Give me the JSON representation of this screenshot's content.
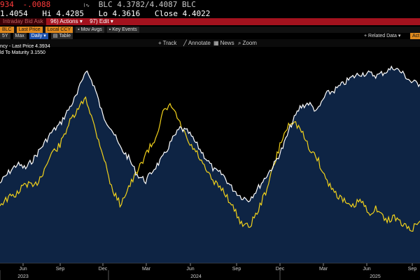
{
  "header": {
    "last_fragment": "934",
    "change": "-.0088",
    "bid_ask": "BLC 4.3782/4.4087 BLC",
    "open_fragment": "1.4054",
    "hi_label": "Hi",
    "hi": "4.4285",
    "lo_label": "Lo",
    "lo": "4.3616",
    "close_label": "Close",
    "close": "4.4022"
  },
  "menubar": {
    "left_fragment": "Intraday Bid Ask",
    "actions": "96) Actions ▾",
    "edit": "97) Edit ▾"
  },
  "options_row": {
    "source": "BLC",
    "field": "Last Price",
    "currency": "Local CCY",
    "mov_avgs": "Mov Avgs",
    "key_events": "Key Events"
  },
  "period_row": {
    "p5y": "5Y",
    "max": "Max",
    "freq": "Daily ▾",
    "table": "Table",
    "related": "+ Related Data ▾",
    "edit_btn": "Act Da"
  },
  "toolbar": {
    "track": "Track",
    "annotate": "Annotate",
    "news": "News",
    "zoom": "Zoom"
  },
  "legend": {
    "line1": "ncy - Last Price 4.3934",
    "line2": "ld To Maturity  3.1550"
  },
  "colors": {
    "background": "#000000",
    "area_fill": "#0e2444",
    "price_line": "#ffffff",
    "ytm_line": "#f2d21b",
    "header_red": "#a3121e",
    "negative": "#ff3b3b",
    "orange_pill": "#e08a1e"
  },
  "chart_data": {
    "type": "line",
    "x_month_ticks": [
      "Jun",
      "Sep",
      "Dec",
      "Mar",
      "Jun",
      "Sep",
      "Dec",
      "Mar",
      "Jun",
      "Sep"
    ],
    "x_year_ticks": [
      "2023",
      "2024",
      "2025"
    ],
    "series": [
      {
        "name": "Last Price",
        "values": [
          0.38,
          0.43,
          0.47,
          0.45,
          0.5,
          0.56,
          0.62,
          0.66,
          0.73,
          0.8,
          0.92,
          0.84,
          0.7,
          0.64,
          0.55,
          0.5,
          0.42,
          0.39,
          0.45,
          0.5,
          0.58,
          0.64,
          0.62,
          0.56,
          0.5,
          0.44,
          0.42,
          0.36,
          0.32,
          0.3,
          0.35,
          0.41,
          0.47,
          0.55,
          0.66,
          0.74,
          0.76,
          0.72,
          0.8,
          0.82,
          0.85,
          0.88,
          0.9,
          0.9,
          0.89,
          0.91,
          0.93,
          0.9,
          0.86,
          0.85
        ]
      },
      {
        "name": "Yield To Maturity",
        "values": [
          0.28,
          0.31,
          0.33,
          0.38,
          0.36,
          0.43,
          0.52,
          0.56,
          0.66,
          0.72,
          0.79,
          0.65,
          0.52,
          0.36,
          0.28,
          0.36,
          0.43,
          0.52,
          0.58,
          0.71,
          0.75,
          0.66,
          0.57,
          0.52,
          0.44,
          0.38,
          0.35,
          0.28,
          0.2,
          0.17,
          0.24,
          0.34,
          0.47,
          0.6,
          0.68,
          0.64,
          0.55,
          0.5,
          0.4,
          0.34,
          0.3,
          0.26,
          0.3,
          0.24,
          0.26,
          0.2,
          0.22,
          0.18,
          0.16,
          0.2
        ]
      }
    ]
  }
}
